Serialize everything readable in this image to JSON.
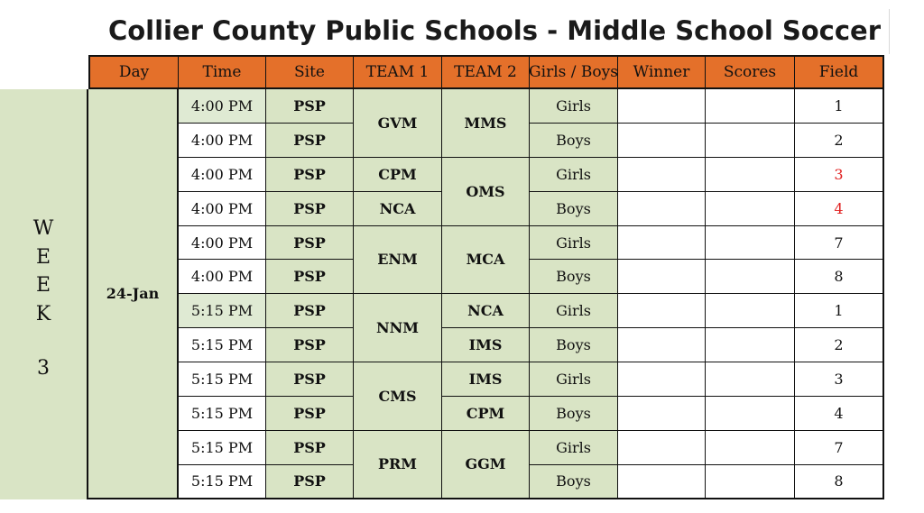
{
  "title": "Collier County Public Schools - Middle School Soccer",
  "headers": [
    "Day",
    "Time",
    "Site",
    "TEAM 1",
    "TEAM 2",
    "Girls / Boys",
    "Winner",
    "Scores",
    "Field"
  ],
  "week_label": [
    "W",
    "E",
    "E",
    "K",
    "3"
  ],
  "day": "24-Jan",
  "rows": [
    {
      "time": "4:00 PM",
      "site": "PSP",
      "team1": "GVM",
      "team2": "MMS",
      "gender": "Girls",
      "winner": "",
      "scores": "",
      "field": "1"
    },
    {
      "time": "4:00 PM",
      "site": "PSP",
      "team1": "",
      "team2": "",
      "gender": "Boys",
      "winner": "",
      "scores": "",
      "field": "2"
    },
    {
      "time": "4:00 PM",
      "site": "PSP",
      "team1": "CPM",
      "team2": "OMS",
      "gender": "Girls",
      "winner": "",
      "scores": "",
      "field": "3"
    },
    {
      "time": "4:00 PM",
      "site": "PSP",
      "team1": "NCA",
      "team2": "",
      "gender": "Boys",
      "winner": "",
      "scores": "",
      "field": "4"
    },
    {
      "time": "4:00 PM",
      "site": "PSP",
      "team1": "ENM",
      "team2": "MCA",
      "gender": "Girls",
      "winner": "",
      "scores": "",
      "field": "7"
    },
    {
      "time": "4:00 PM",
      "site": "PSP",
      "team1": "",
      "team2": "",
      "gender": "Boys",
      "winner": "",
      "scores": "",
      "field": "8"
    },
    {
      "time": "5:15 PM",
      "site": "PSP",
      "team1": "NNM",
      "team2": "NCA",
      "gender": "Girls",
      "winner": "",
      "scores": "",
      "field": "1"
    },
    {
      "time": "5:15 PM",
      "site": "PSP",
      "team1": "",
      "team2": "IMS",
      "gender": "Boys",
      "winner": "",
      "scores": "",
      "field": "2"
    },
    {
      "time": "5:15 PM",
      "site": "PSP",
      "team1": "CMS",
      "team2": "IMS",
      "gender": "Girls",
      "winner": "",
      "scores": "",
      "field": "3"
    },
    {
      "time": "5:15 PM",
      "site": "PSP",
      "team1": "",
      "team2": "CPM",
      "gender": "Boys",
      "winner": "",
      "scores": "",
      "field": "4"
    },
    {
      "time": "5:15 PM",
      "site": "PSP",
      "team1": "PRM",
      "team2": "GGM",
      "gender": "Girls",
      "winner": "",
      "scores": "",
      "field": "7"
    },
    {
      "time": "5:15 PM",
      "site": "PSP",
      "team1": "",
      "team2": "",
      "gender": "Boys",
      "winner": "",
      "scores": "",
      "field": "8"
    }
  ],
  "colors": {
    "header": "#e4702a",
    "green": "#d9e4c5",
    "highlight_field": "#e02020"
  }
}
